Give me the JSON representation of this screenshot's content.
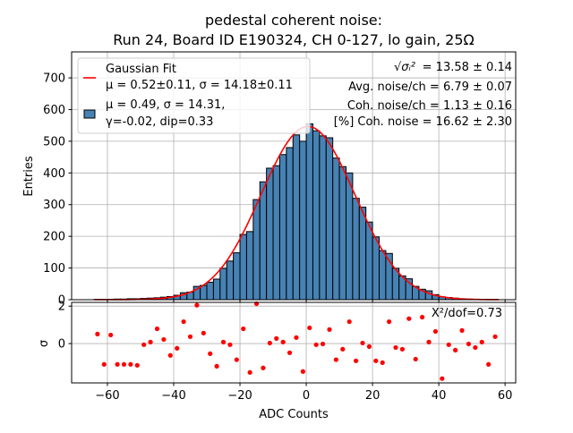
{
  "chart_data": [
    {
      "type": "bar",
      "title_line1": "pedestal coherent noise:",
      "title_line2": "Run 24, Board ID E190324, CH 0-127, lo gain, 25Ω",
      "xlabel": "",
      "ylabel": "Entries",
      "xlim": [
        -70.8,
        63.2
      ],
      "ylim": [
        0,
        782
      ],
      "xticks": [
        -60,
        -40,
        -20,
        0,
        20,
        40,
        60
      ],
      "yticks": [
        0,
        100,
        200,
        300,
        400,
        500,
        600,
        700
      ],
      "grid": true,
      "bin_width": 2,
      "bin_left_edges": [
        -64,
        -62,
        -60,
        -58,
        -56,
        -54,
        -52,
        -50,
        -48,
        -46,
        -44,
        -42,
        -40,
        -38,
        -36,
        -34,
        -32,
        -30,
        -28,
        -26,
        -24,
        -22,
        -20,
        -18,
        -16,
        -14,
        -12,
        -10,
        -8,
        -6,
        -4,
        -2,
        0,
        2,
        4,
        6,
        8,
        10,
        12,
        14,
        16,
        18,
        20,
        22,
        24,
        26,
        28,
        30,
        32,
        34,
        36,
        38,
        40,
        42,
        44,
        46,
        48,
        50,
        52,
        54,
        56
      ],
      "counts": [
        1,
        1,
        1,
        2,
        2,
        3,
        3,
        4,
        5,
        6,
        8,
        10,
        14,
        22,
        24,
        42,
        45,
        55,
        65,
        99,
        122,
        148,
        206,
        215,
        316,
        372,
        415,
        423,
        458,
        480,
        520,
        500,
        555,
        533,
        517,
        511,
        447,
        420,
        400,
        320,
        292,
        245,
        198,
        155,
        146,
        99,
        75,
        66,
        42,
        33,
        28,
        16,
        9,
        7,
        5,
        3,
        2,
        1,
        1,
        1,
        1
      ],
      "bar_color": "#4682b4",
      "fit": {
        "mu": 0.52,
        "sigma": 14.18,
        "color": "#ff0000"
      },
      "legend": {
        "placement": "upper-left",
        "entries": [
          {
            "line1": "Gaussian Fit",
            "line2": "μ = 0.52±0.11, σ = 14.18±0.11"
          },
          {
            "line1": "μ = 0.49, σ = 14.31,",
            "line2": "γ=-0.02, dip=0.33"
          }
        ]
      },
      "annotations": {
        "sigma_label": "√σᵢ²",
        "sigma_value": " = 13.58 ± 0.14",
        "avg_noise": "Avg. noise/ch = 6.79 ± 0.07",
        "coh_noise": "Coh. noise/ch = 1.13 ± 0.16",
        "coh_pct": "[%] Coh. noise = 16.62  ± 2.30"
      }
    },
    {
      "type": "scatter",
      "xlabel": "ADC Counts",
      "ylabel": "σ",
      "xlim": [
        -70.8,
        63.2
      ],
      "ylim": [
        -2.1,
        2.2
      ],
      "xticks": [
        -60,
        -40,
        -20,
        0,
        20,
        40,
        60
      ],
      "yticks": [
        0,
        2
      ],
      "grid": true,
      "color": "#ff0000",
      "annotation": "X²/dof=0.73",
      "x": [
        -63,
        -61,
        -59,
        -57,
        -55,
        -53,
        -51,
        -49,
        -47,
        -45,
        -43,
        -41,
        -39,
        -37,
        -35,
        -33,
        -31,
        -29,
        -27,
        -25,
        -23,
        -21,
        -19,
        -17,
        -15,
        -13,
        -11,
        -9,
        -7,
        -5,
        -3,
        -1,
        1,
        3,
        5,
        7,
        9,
        11,
        13,
        15,
        17,
        19,
        21,
        23,
        25,
        27,
        29,
        31,
        33,
        35,
        37,
        39,
        41,
        43,
        45,
        47,
        49,
        51,
        53,
        55,
        57
      ],
      "y": [
        0.51,
        -1.11,
        0.46,
        -1.11,
        -1.11,
        -1.11,
        -1.16,
        -0.06,
        0.08,
        0.79,
        0.22,
        -0.63,
        -0.25,
        1.17,
        0.37,
        2.05,
        0.56,
        -0.54,
        -1.21,
        0.08,
        -0.06,
        -0.86,
        0.79,
        -1.54,
        2.13,
        -1.3,
        0.03,
        0.27,
        0.08,
        -0.49,
        0.32,
        -1.49,
        0.84,
        -0.06,
        -0.02,
        0.75,
        -0.86,
        -0.3,
        1.17,
        -0.92,
        0.03,
        -0.16,
        -0.92,
        -1.02,
        1.17,
        -0.21,
        -0.3,
        1.33,
        -0.83,
        1.41,
        0.08,
        0.65,
        -1.87,
        -0.06,
        -0.35,
        0.7,
        -0.02,
        -0.21,
        0.08,
        -1.11,
        0.37
      ]
    }
  ]
}
